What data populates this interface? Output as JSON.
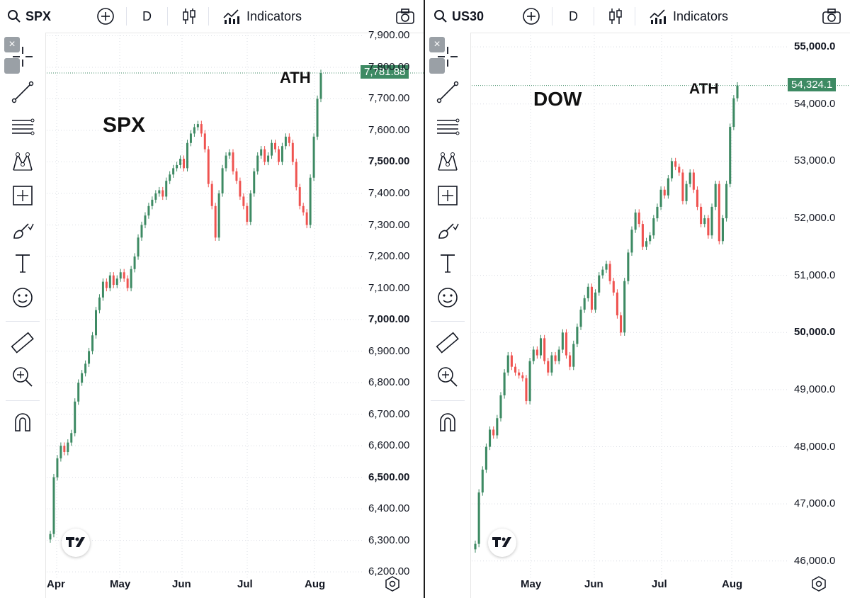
{
  "colors": {
    "up": "#26a69a",
    "up_dark": "#3d8a63",
    "down": "#ef5350",
    "grid": "#d9dce3",
    "price_tag": "#3d8a63"
  },
  "panels": [
    {
      "id": "left",
      "toolbar": {
        "symbol": "SPX",
        "interval": "D",
        "indicators_label": "Indicators"
      },
      "annotations": {
        "symbol_label": "SPX",
        "ath_label": "ATH"
      },
      "last_price_label": "7,781.88",
      "tool_icons": [
        "crosshair-icon",
        "trend-line-icon",
        "fib-lines-icon",
        "pattern-icon",
        "measure-box-icon",
        "brush-icon",
        "text-icon",
        "emoji-icon",
        "ruler-icon",
        "zoom-in-icon",
        "magnet-icon"
      ]
    },
    {
      "id": "right",
      "toolbar": {
        "symbol": "US30",
        "interval": "D",
        "indicators_label": "Indicators"
      },
      "annotations": {
        "symbol_label": "DOW",
        "ath_label": "ATH"
      },
      "last_price_label": "54,324.1",
      "tool_icons": [
        "crosshair-icon",
        "trend-line-icon",
        "fib-lines-icon",
        "pattern-icon",
        "measure-box-icon",
        "brush-icon",
        "text-icon",
        "emoji-icon",
        "ruler-icon",
        "zoom-in-icon",
        "magnet-icon"
      ]
    }
  ],
  "chart_data": [
    {
      "type": "candlestick",
      "symbol": "SPX",
      "interval": "D",
      "x_tick_labels": [
        "Apr",
        "May",
        "Jun",
        "Jul",
        "Aug"
      ],
      "y_tick_labels": [
        "7,900.00",
        "7,800.00",
        "7,700.00",
        "7,600.00",
        "7,500.00",
        "7,400.00",
        "7,300.00",
        "7,200.00",
        "7,100.00",
        "7,000.00",
        "6,900.00",
        "6,800.00",
        "6,700.00",
        "6,600.00",
        "6,500.00",
        "6,400.00",
        "6,300.00",
        "6,200.00"
      ],
      "y_bold_labels": [
        "7,500.00",
        "7,000.00",
        "6,500.00"
      ],
      "ylim": [
        6180,
        7910
      ],
      "last_price": 7781.88,
      "closes": [
        6320,
        6500,
        6560,
        6600,
        6580,
        6610,
        6640,
        6740,
        6800,
        6830,
        6860,
        6900,
        6950,
        7030,
        7070,
        7120,
        7100,
        7140,
        7110,
        7130,
        7150,
        7130,
        7100,
        7160,
        7200,
        7260,
        7300,
        7330,
        7360,
        7380,
        7400,
        7410,
        7390,
        7440,
        7460,
        7480,
        7490,
        7510,
        7480,
        7560,
        7590,
        7610,
        7620,
        7590,
        7540,
        7430,
        7360,
        7260,
        7400,
        7480,
        7520,
        7530,
        7470,
        7440,
        7390,
        7360,
        7310,
        7400,
        7470,
        7520,
        7540,
        7500,
        7520,
        7560,
        7540,
        7500,
        7550,
        7580,
        7560,
        7500,
        7420,
        7360,
        7340,
        7300,
        7450,
        7580,
        7700,
        7781.88
      ]
    },
    {
      "type": "candlestick",
      "symbol": "US30",
      "interval": "D",
      "x_tick_labels": [
        "May",
        "Jun",
        "Jul",
        "Aug"
      ],
      "y_tick_labels": [
        "55,000.0",
        "54,000.0",
        "53,000.0",
        "52,000.0",
        "51,000.0",
        "50,000.0",
        "49,000.0",
        "48,000.0",
        "47,000.0",
        "46,000.0"
      ],
      "y_bold_labels": [
        "55,000.0",
        "50,000.0"
      ],
      "ylim": [
        45700,
        55250
      ],
      "last_price": 54324.1,
      "closes": [
        46300,
        47200,
        47600,
        48000,
        48300,
        48200,
        48500,
        48900,
        49300,
        49600,
        49400,
        49300,
        49250,
        49200,
        48800,
        49500,
        49700,
        49600,
        49900,
        49500,
        49300,
        49600,
        49500,
        49700,
        50000,
        49600,
        49400,
        49800,
        50100,
        50400,
        50600,
        50800,
        50400,
        50700,
        51000,
        51100,
        51200,
        50900,
        50700,
        50300,
        50000,
        50900,
        51400,
        51800,
        52100,
        51900,
        51500,
        51600,
        51700,
        52000,
        52200,
        52500,
        52400,
        52700,
        53000,
        52900,
        52800,
        52300,
        52600,
        52800,
        52500,
        52200,
        51900,
        52000,
        51700,
        52200,
        52600,
        51600,
        52000,
        52600,
        53600,
        54100,
        54324.1
      ]
    }
  ]
}
